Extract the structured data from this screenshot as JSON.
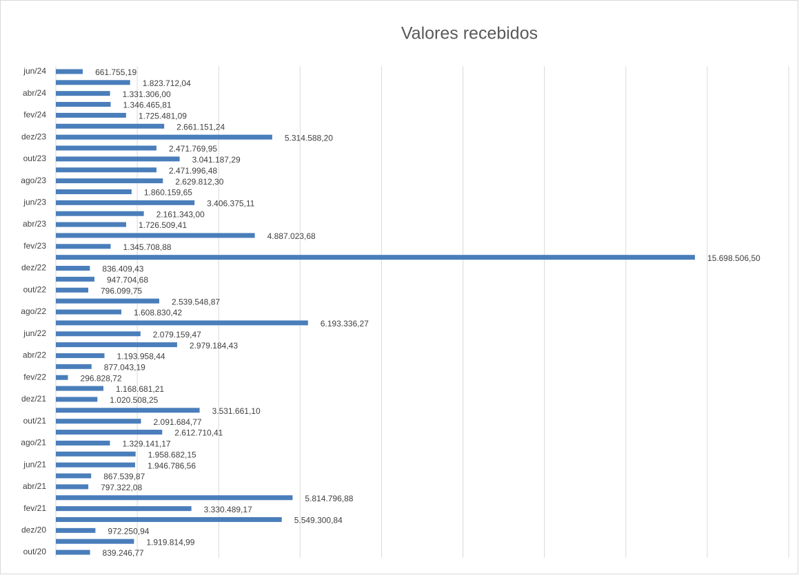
{
  "chart_data": {
    "type": "barh",
    "title": "Valores recebidos",
    "categories": [
      "out/20",
      null,
      "dez/20",
      null,
      "fev/21",
      null,
      "abr/21",
      null,
      "jun/21",
      null,
      "ago/21",
      null,
      "out/21",
      null,
      "dez/21",
      null,
      "fev/22",
      null,
      "abr/22",
      null,
      "jun/22",
      null,
      "ago/22",
      null,
      "out/22",
      null,
      "dez/22",
      null,
      "fev/23",
      null,
      "abr/23",
      null,
      "jun/23",
      null,
      "ago/23",
      null,
      "out/23",
      null,
      "dez/23",
      null,
      "fev/24",
      null,
      "abr/24",
      null,
      "jun/24"
    ],
    "values": [
      839246.77,
      1919814.99,
      972250.94,
      5549300.84,
      3330489.17,
      5814796.88,
      797322.08,
      867539.87,
      1946786.56,
      1958682.15,
      1329141.17,
      2612710.41,
      2091684.77,
      3531661.1,
      1020508.25,
      1168681.21,
      296828.72,
      877043.19,
      1193958.44,
      2979184.43,
      2079159.47,
      6193336.27,
      1608830.42,
      2539548.87,
      796099.75,
      947704.68,
      836409.43,
      15698506.5,
      1345708.88,
      4887023.68,
      1726509.41,
      2161343.0,
      3406375.11,
      1860159.65,
      2629812.3,
      2471996.48,
      3041187.29,
      2471769.95,
      5314588.2,
      2661151.24,
      1725481.09,
      1346465.81,
      1331306.0,
      1823712.04,
      661755.19
    ],
    "value_labels": [
      "839.246,77",
      "1.919.814,99",
      "972.250,94",
      "5.549.300,84",
      "3.330.489,17",
      "5.814.796,88",
      "797.322,08",
      "867.539,87",
      "1.946.786,56",
      "1.958.682,15",
      "1.329.141,17",
      "2.612.710,41",
      "2.091.684,77",
      "3.531.661,10",
      "1.020.508,25",
      "1.168.681,21",
      "296.828,72",
      "877.043,19",
      "1.193.958,44",
      "2.979.184,43",
      "2.079.159,47",
      "6.193.336,27",
      "1.608.830,42",
      "2.539.548,87",
      "796.099,75",
      "947.704,68",
      "836.409,43",
      "15.698.506,50",
      "1.345.708,88",
      "4.887.023,68",
      "1.726.509,41",
      "2.161.343,00",
      "3.406.375,11",
      "1.860.159,65",
      "2.629.812,30",
      "2.471.996,48",
      "3.041.187,29",
      "2.471.769,95",
      "5.314.588,20",
      "2.661.151,24",
      "1.725.481,09",
      "1.346.465,81",
      "1.331.306,00",
      "1.823.712,04",
      "661.755,19"
    ],
    "color": "#4a7ebb",
    "xlim": [
      0,
      18000000
    ],
    "xticks": [
      0,
      2000000,
      4000000,
      6000000,
      8000000,
      10000000,
      12000000,
      14000000,
      16000000,
      18000000
    ],
    "grid": true
  }
}
